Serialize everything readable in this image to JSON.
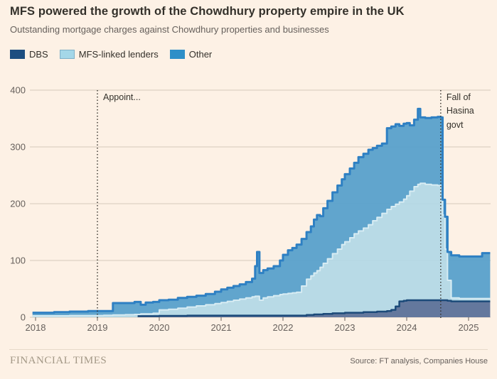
{
  "header": {
    "title": "MFS powered the growth of the Chowdhury property empire in the UK",
    "subtitle": "Outstanding mortgage charges against Chowdhury properties and businesses"
  },
  "legend": {
    "items": [
      {
        "label": "DBS",
        "color": "#1d4e80"
      },
      {
        "label": "MFS-linked lenders",
        "color": "#a4d7e8"
      },
      {
        "label": "Other",
        "color": "#2e8fc8"
      }
    ]
  },
  "annotations": [
    {
      "text": "Appoint...",
      "x_year": 2019.0
    },
    {
      "text": "Fall of Hasina govt",
      "x_year": 2024.55
    }
  ],
  "footer": {
    "brand": "FINANCIAL TIMES",
    "source": "Source: FT analysis, Companies House"
  },
  "chart_data": {
    "type": "area",
    "stacked": true,
    "title": "MFS powered the growth of the Chowdhury property empire in the UK",
    "xlabel": "",
    "ylabel": "",
    "x_ticks": [
      2018,
      2019,
      2020,
      2021,
      2022,
      2023,
      2024,
      2025
    ],
    "y_ticks": [
      0,
      100,
      200,
      300,
      400
    ],
    "xlim": [
      2017.88,
      2025.36
    ],
    "ylim": [
      0,
      400
    ],
    "grid": "horizontal",
    "legend_position": "top-left",
    "series_names": [
      "DBS",
      "MFS-linked lenders",
      "Other"
    ],
    "point_format": [
      "year",
      "dbs_cumulative",
      "mfs_cumulative",
      "total"
    ],
    "points": [
      [
        2017.95,
        0,
        2.5,
        8
      ],
      [
        2018.3,
        0,
        2.5,
        9
      ],
      [
        2018.55,
        0,
        3,
        10
      ],
      [
        2018.85,
        0,
        3,
        11
      ],
      [
        2019.1,
        0,
        3.5,
        11
      ],
      [
        2019.25,
        0,
        4,
        25
      ],
      [
        2019.45,
        0,
        4.5,
        25
      ],
      [
        2019.6,
        0,
        5,
        27
      ],
      [
        2019.65,
        2,
        5,
        27
      ],
      [
        2019.7,
        2,
        6,
        22
      ],
      [
        2019.78,
        2,
        6,
        26
      ],
      [
        2019.9,
        2,
        7,
        27
      ],
      [
        2020.0,
        2.5,
        13,
        30
      ],
      [
        2020.15,
        2.5,
        14,
        31
      ],
      [
        2020.3,
        2.5,
        16,
        34
      ],
      [
        2020.45,
        3,
        18,
        36
      ],
      [
        2020.6,
        3,
        20,
        38
      ],
      [
        2020.75,
        3,
        22,
        41
      ],
      [
        2020.9,
        3,
        24,
        45
      ],
      [
        2021.0,
        3,
        26,
        49
      ],
      [
        2021.1,
        3,
        28,
        52
      ],
      [
        2021.2,
        3,
        30,
        55
      ],
      [
        2021.3,
        3,
        32,
        58
      ],
      [
        2021.4,
        3,
        34,
        62
      ],
      [
        2021.5,
        3,
        36,
        68
      ],
      [
        2021.55,
        3,
        37,
        90
      ],
      [
        2021.58,
        3,
        37,
        115
      ],
      [
        2021.62,
        3,
        30,
        78
      ],
      [
        2021.68,
        3,
        34,
        83
      ],
      [
        2021.75,
        3,
        36,
        86
      ],
      [
        2021.85,
        3,
        38,
        90
      ],
      [
        2021.95,
        3,
        40,
        100
      ],
      [
        2022.0,
        3,
        41,
        110
      ],
      [
        2022.08,
        3,
        42,
        118
      ],
      [
        2022.15,
        3,
        43,
        122
      ],
      [
        2022.22,
        3,
        44,
        128
      ],
      [
        2022.3,
        3,
        55,
        138
      ],
      [
        2022.38,
        4,
        67,
        150
      ],
      [
        2022.45,
        4,
        73,
        160
      ],
      [
        2022.5,
        5,
        78,
        172
      ],
      [
        2022.55,
        5,
        82,
        180
      ],
      [
        2022.6,
        5,
        88,
        178
      ],
      [
        2022.65,
        6,
        95,
        192
      ],
      [
        2022.72,
        6,
        103,
        205
      ],
      [
        2022.8,
        7,
        112,
        220
      ],
      [
        2022.88,
        7,
        120,
        232
      ],
      [
        2022.95,
        7,
        128,
        243
      ],
      [
        2023.0,
        8,
        133,
        252
      ],
      [
        2023.08,
        8,
        140,
        262
      ],
      [
        2023.15,
        8,
        147,
        272
      ],
      [
        2023.22,
        8,
        152,
        282
      ],
      [
        2023.3,
        9,
        157,
        288
      ],
      [
        2023.38,
        9,
        163,
        295
      ],
      [
        2023.45,
        9,
        170,
        298
      ],
      [
        2023.52,
        10,
        176,
        302
      ],
      [
        2023.6,
        10,
        183,
        306
      ],
      [
        2023.68,
        11,
        190,
        333
      ],
      [
        2023.75,
        13,
        195,
        336
      ],
      [
        2023.82,
        19,
        199,
        340
      ],
      [
        2023.88,
        28,
        203,
        337
      ],
      [
        2023.95,
        29,
        208,
        341
      ],
      [
        2024.0,
        30,
        214,
        342
      ],
      [
        2024.05,
        30,
        222,
        338
      ],
      [
        2024.12,
        30,
        230,
        348
      ],
      [
        2024.18,
        30,
        234,
        367
      ],
      [
        2024.22,
        30,
        236,
        352
      ],
      [
        2024.3,
        30,
        234,
        351
      ],
      [
        2024.4,
        30,
        233,
        352
      ],
      [
        2024.5,
        30,
        232,
        353
      ],
      [
        2024.55,
        30,
        232,
        352
      ],
      [
        2024.58,
        30,
        180,
        207
      ],
      [
        2024.62,
        30,
        120,
        177
      ],
      [
        2024.66,
        29,
        65,
        115
      ],
      [
        2024.72,
        28,
        34,
        109
      ],
      [
        2024.85,
        28,
        33,
        107
      ],
      [
        2025.0,
        28,
        33,
        107
      ],
      [
        2025.22,
        28,
        33,
        113
      ],
      [
        2025.35,
        28,
        33,
        113
      ]
    ],
    "colors": {
      "background": "#fdf1e5",
      "grid": "#d5c9bc",
      "axis_text": "#66605c",
      "dbs_fill": "#64789d",
      "dbs_stroke": "#1c4a79",
      "mfs_fill": "#b2d8e6",
      "mfs_stroke": "#d7ecf3",
      "other_fill": "#58a0cb",
      "other_stroke": "#2e80c3",
      "annotation_line": "#33302a"
    }
  }
}
